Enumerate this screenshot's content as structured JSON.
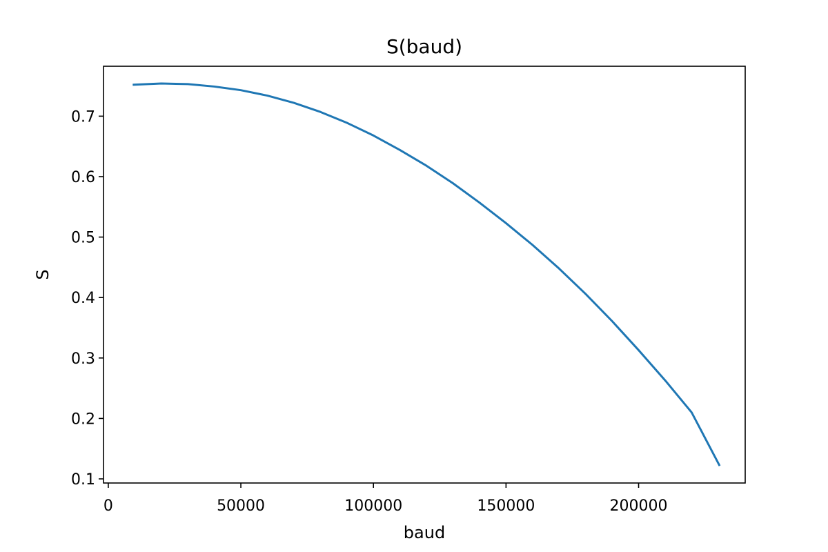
{
  "chart_data": {
    "type": "line",
    "title": "S(baud)",
    "xlabel": "baud",
    "ylabel": "S",
    "xlim": [
      -1800,
      240200
    ],
    "ylim": [
      0.0932,
      0.7826
    ],
    "xticks": [
      0,
      50000,
      100000,
      150000,
      200000
    ],
    "xtick_labels": [
      "0",
      "50000",
      "100000",
      "150000",
      "200000"
    ],
    "yticks": [
      0.1,
      0.2,
      0.3,
      0.4,
      0.5,
      0.6,
      0.7
    ],
    "ytick_labels": [
      "0.1",
      "0.2",
      "0.3",
      "0.4",
      "0.5",
      "0.6",
      "0.7"
    ],
    "grid": false,
    "series": [
      {
        "color": "#1f77b4",
        "x": [
          9600,
          20000,
          30000,
          40000,
          50000,
          60000,
          70000,
          80000,
          90000,
          100000,
          110000,
          120000,
          130000,
          140000,
          150000,
          160000,
          170000,
          180000,
          190000,
          200000,
          210000,
          220000,
          230400
        ],
        "y": [
          0.752,
          0.754,
          0.753,
          0.749,
          0.743,
          0.734,
          0.722,
          0.707,
          0.689,
          0.668,
          0.644,
          0.618,
          0.589,
          0.557,
          0.523,
          0.487,
          0.448,
          0.406,
          0.361,
          0.313,
          0.263,
          0.21,
          0.123
        ]
      }
    ]
  }
}
